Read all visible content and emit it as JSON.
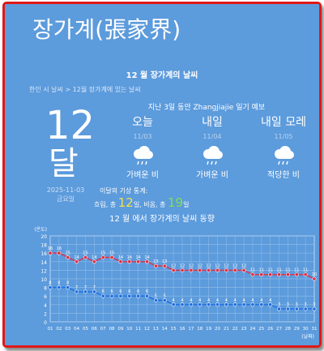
{
  "header": {
    "title": "장가계(張家界)",
    "subtitle": "12 월 장가계의 날씨",
    "breadcrumb": "한인 시 날씨 > 12월 장가계에 있는 날씨"
  },
  "today": {
    "month_num": "12",
    "month_unit": "달",
    "date": "2025-11-03",
    "weekday": "금요일"
  },
  "forecast": {
    "heading": "지난 3일 동안 Zhangjiajie 일기 예보",
    "days": [
      {
        "name": "오늘",
        "date": "11/03",
        "condition": "가벼운 비",
        "icon": "cloud-rain-icon"
      },
      {
        "name": "내일",
        "date": "11/04",
        "condition": "가벼운 비",
        "icon": "cloud-rain-icon"
      },
      {
        "name": "내일 모레",
        "date": "11/05",
        "condition": "적당한 비",
        "icon": "cloud-rain-icon"
      }
    ]
  },
  "stats": {
    "title": "이달의 기상 통계:",
    "sunny_label": "흐림, 총",
    "sunny_count": "12",
    "sunny_unit": "일, 비옴,",
    "rain_label": "총",
    "rain_count": "19",
    "rain_unit": "일"
  },
  "colors": {
    "background": "#5c9bdc",
    "border": "#e01818",
    "high_series": "#d8324a",
    "low_series": "#1f6fe0",
    "sun_accent": "#f4e04a",
    "rain_accent": "#7fe14a"
  },
  "chart_data": {
    "type": "line",
    "title": "12 월 에서 장가계의 날씨 동향",
    "ylabel": "(온도)",
    "xlabel": "(날짜)",
    "ylim": [
      0,
      20
    ],
    "yticks": [
      0,
      2,
      4,
      6,
      8,
      10,
      12,
      14,
      16,
      18,
      20
    ],
    "grid": true,
    "x": [
      "01",
      "02",
      "03",
      "04",
      "05",
      "06",
      "07",
      "08",
      "09",
      "10",
      "11",
      "12",
      "13",
      "14",
      "15",
      "16",
      "17",
      "18",
      "19",
      "20",
      "21",
      "22",
      "23",
      "24",
      "25",
      "26",
      "27",
      "28",
      "29",
      "30",
      "31"
    ],
    "series": [
      {
        "values": [
          16,
          16,
          15,
          14,
          15,
          14,
          15,
          15,
          14,
          14,
          14,
          14,
          13,
          13,
          12,
          12,
          12,
          12,
          12,
          12,
          12,
          12,
          12,
          11,
          11,
          11,
          11,
          11,
          11,
          11,
          10
        ]
      },
      {
        "values": [
          8,
          8,
          8,
          7,
          7,
          7,
          6,
          6,
          6,
          6,
          6,
          6,
          5,
          5,
          4,
          4,
          4,
          4,
          4,
          4,
          4,
          4,
          4,
          4,
          4,
          4,
          3,
          3,
          3,
          3,
          3
        ]
      }
    ]
  }
}
